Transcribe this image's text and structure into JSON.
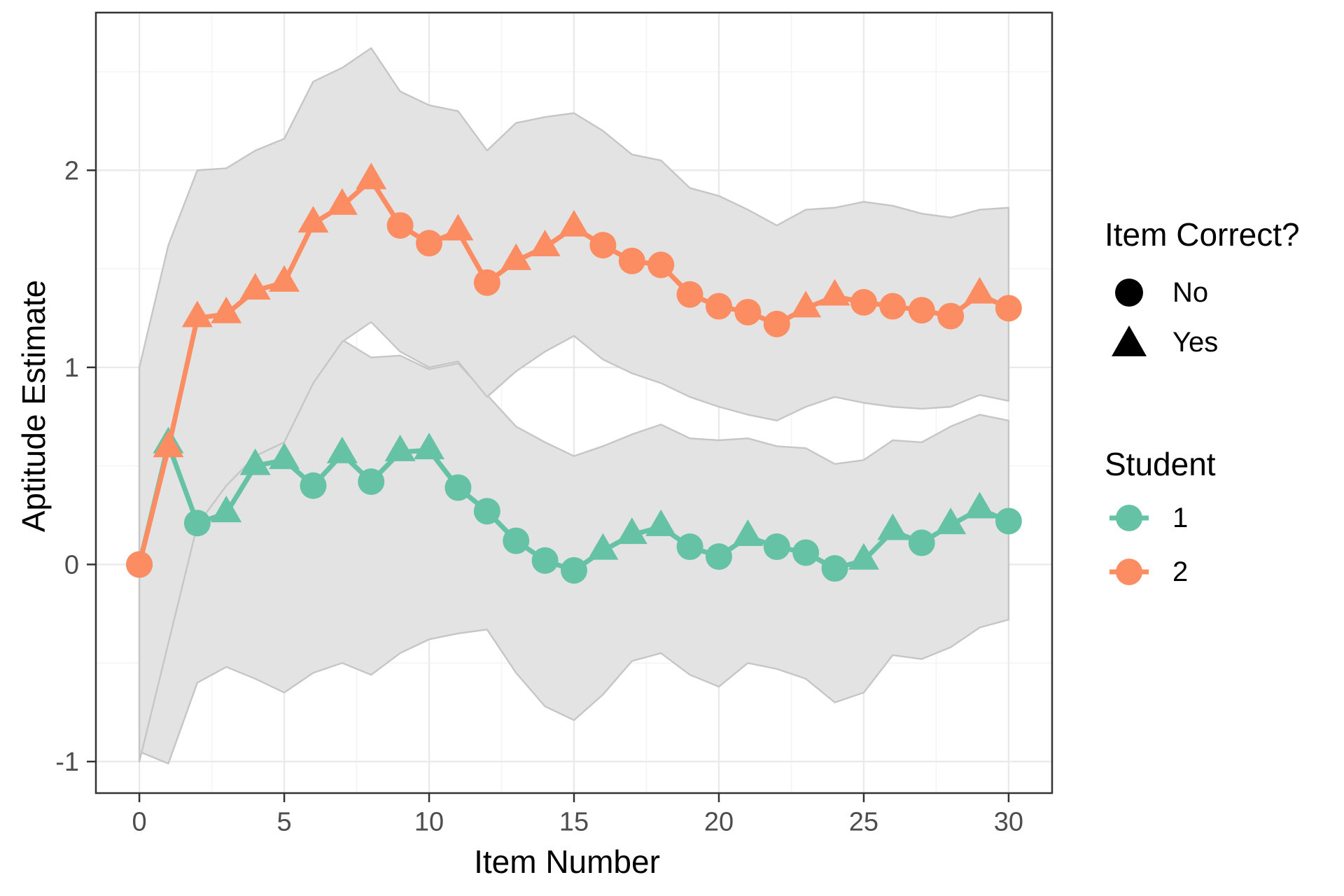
{
  "chart_data": {
    "type": "line",
    "title": "",
    "xlabel": "Item Number",
    "ylabel": "Aptitude Estimate",
    "x_ticks": [
      0,
      5,
      10,
      15,
      20,
      25,
      30
    ],
    "y_ticks": [
      -1,
      0,
      1,
      2
    ],
    "x_minor_ticks": [
      2.5,
      7.5,
      12.5,
      17.5,
      22.5,
      27.5
    ],
    "y_minor_ticks": [
      -0.5,
      0.5,
      1.5,
      2.5
    ],
    "xlim": [
      -1.5,
      31.5
    ],
    "ylim": [
      -1.16,
      2.8
    ],
    "grid": true,
    "legend_position": "right",
    "items": [
      0,
      1,
      2,
      3,
      4,
      5,
      6,
      7,
      8,
      9,
      10,
      11,
      12,
      13,
      14,
      15,
      16,
      17,
      18,
      19,
      20,
      21,
      22,
      23,
      24,
      25,
      26,
      27,
      28,
      29,
      30
    ],
    "series": [
      {
        "name": "1",
        "color": "#66C2A5",
        "values": [
          0.0,
          0.61,
          0.21,
          0.26,
          0.5,
          0.53,
          0.4,
          0.56,
          0.42,
          0.57,
          0.58,
          0.39,
          0.27,
          0.12,
          0.02,
          -0.03,
          0.07,
          0.15,
          0.19,
          0.09,
          0.04,
          0.14,
          0.09,
          0.06,
          -0.02,
          0.02,
          0.17,
          0.11,
          0.2,
          0.28,
          0.22
        ],
        "correct": [
          "no",
          "yes",
          "no",
          "yes",
          "yes",
          "yes",
          "no",
          "yes",
          "no",
          "yes",
          "yes",
          "no",
          "no",
          "no",
          "no",
          "no",
          "yes",
          "yes",
          "yes",
          "no",
          "no",
          "yes",
          "no",
          "no",
          "no",
          "yes",
          "yes",
          "no",
          "yes",
          "yes",
          "no"
        ],
        "ribbon_upper": [
          1.0,
          1.05,
          0.48,
          0.5,
          0.64,
          0.66,
          0.95,
          1.14,
          1.05,
          1.06,
          0.99,
          1.02,
          0.86,
          0.7,
          0.62,
          0.55,
          0.6,
          0.66,
          0.71,
          0.64,
          0.63,
          0.64,
          0.6,
          0.59,
          0.51,
          0.53,
          0.63,
          0.62,
          0.7,
          0.76,
          0.73
        ],
        "ribbon_lower": [
          -0.95,
          -1.01,
          -0.6,
          -0.52,
          -0.58,
          -0.65,
          -0.55,
          -0.5,
          -0.56,
          -0.45,
          -0.38,
          -0.35,
          -0.33,
          -0.55,
          -0.72,
          -0.79,
          -0.66,
          -0.49,
          -0.45,
          -0.56,
          -0.62,
          -0.5,
          -0.53,
          -0.58,
          -0.7,
          -0.65,
          -0.46,
          -0.48,
          -0.42,
          -0.32,
          -0.28
        ]
      },
      {
        "name": "2",
        "color": "#FC8D62",
        "values": [
          0.0,
          0.59,
          1.25,
          1.27,
          1.39,
          1.43,
          1.73,
          1.82,
          1.95,
          1.72,
          1.63,
          1.69,
          1.43,
          1.54,
          1.61,
          1.71,
          1.62,
          1.54,
          1.52,
          1.37,
          1.31,
          1.28,
          1.22,
          1.3,
          1.36,
          1.33,
          1.31,
          1.29,
          1.26,
          1.37,
          1.3
        ],
        "correct": [
          "no",
          "yes",
          "yes",
          "yes",
          "yes",
          "yes",
          "yes",
          "yes",
          "yes",
          "no",
          "no",
          "yes",
          "no",
          "yes",
          "yes",
          "yes",
          "no",
          "no",
          "no",
          "no",
          "no",
          "no",
          "no",
          "yes",
          "yes",
          "no",
          "no",
          "no",
          "no",
          "yes",
          "no"
        ],
        "ribbon_upper": [
          1.0,
          1.62,
          2.0,
          2.01,
          2.1,
          2.16,
          2.45,
          2.52,
          2.62,
          2.4,
          2.33,
          2.3,
          2.1,
          2.24,
          2.27,
          2.29,
          2.2,
          2.08,
          2.05,
          1.91,
          1.87,
          1.8,
          1.72,
          1.8,
          1.81,
          1.84,
          1.82,
          1.78,
          1.76,
          1.8,
          1.81
        ],
        "ribbon_lower": [
          -1.0,
          -0.4,
          0.2,
          0.4,
          0.55,
          0.62,
          0.92,
          1.13,
          1.23,
          1.08,
          1.0,
          1.03,
          0.85,
          0.98,
          1.08,
          1.16,
          1.04,
          0.97,
          0.92,
          0.85,
          0.8,
          0.76,
          0.73,
          0.8,
          0.85,
          0.82,
          0.8,
          0.79,
          0.8,
          0.86,
          0.83
        ]
      }
    ],
    "legend": {
      "shape_title": "Item Correct?",
      "shape_items": [
        {
          "label": "No",
          "shape": "circle"
        },
        {
          "label": "Yes",
          "shape": "triangle"
        }
      ],
      "color_title": "Student",
      "color_items": [
        {
          "label": "1",
          "color": "#66C2A5"
        },
        {
          "label": "2",
          "color": "#FC8D62"
        }
      ]
    },
    "colors": {
      "ribbon_fill": "#E3E3E3",
      "ribbon_stroke": "#C6C6C6",
      "grid_major": "#EAEAEA",
      "grid_minor": "#F4F4F4",
      "panel_border": "#333333",
      "tick_text": "#4D4D4D",
      "student1": "#66C2A5",
      "student2": "#FC8D62",
      "legend_shape": "#000000"
    }
  }
}
